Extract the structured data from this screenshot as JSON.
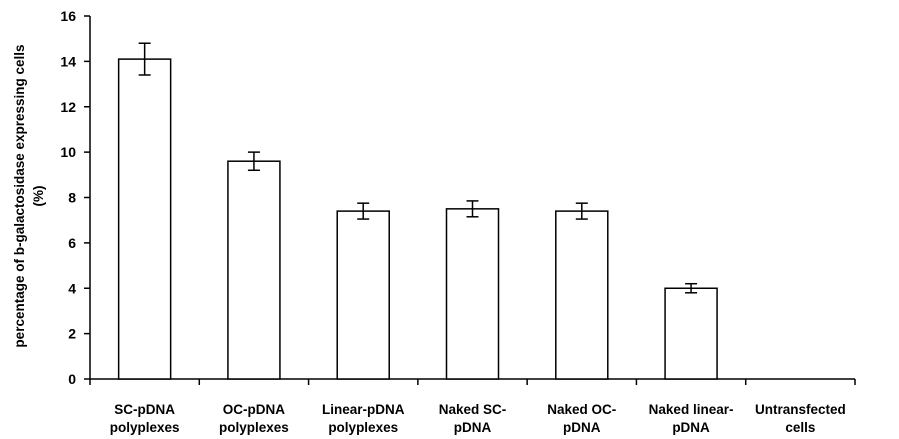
{
  "chart_data": {
    "type": "bar",
    "title": "",
    "xlabel": "",
    "ylabel_lines": [
      "percentage of b-galactosidase expressing cells",
      "(%)"
    ],
    "ylim": [
      0,
      16
    ],
    "yticks": [
      "0",
      "2",
      "4",
      "6",
      "8",
      "10",
      "12",
      "14",
      "16"
    ],
    "grid": false,
    "legend": "none",
    "categories": [
      [
        "SC-pDNA",
        "polyplexes"
      ],
      [
        "OC-pDNA",
        "polyplexes"
      ],
      [
        "Linear-pDNA",
        "polyplexes"
      ],
      [
        "Naked SC-",
        "pDNA"
      ],
      [
        "Naked OC-",
        "pDNA"
      ],
      [
        "Naked linear-",
        "pDNA"
      ],
      [
        "Untransfected",
        "cells"
      ]
    ],
    "values": [
      14.1,
      9.6,
      7.4,
      7.5,
      7.4,
      4.0,
      0
    ],
    "errors": [
      0.7,
      0.4,
      0.35,
      0.35,
      0.35,
      0.2,
      0
    ],
    "colors": {
      "bar_fill": "#ffffff",
      "bar_stroke": "#000000",
      "axis": "#000000"
    }
  }
}
